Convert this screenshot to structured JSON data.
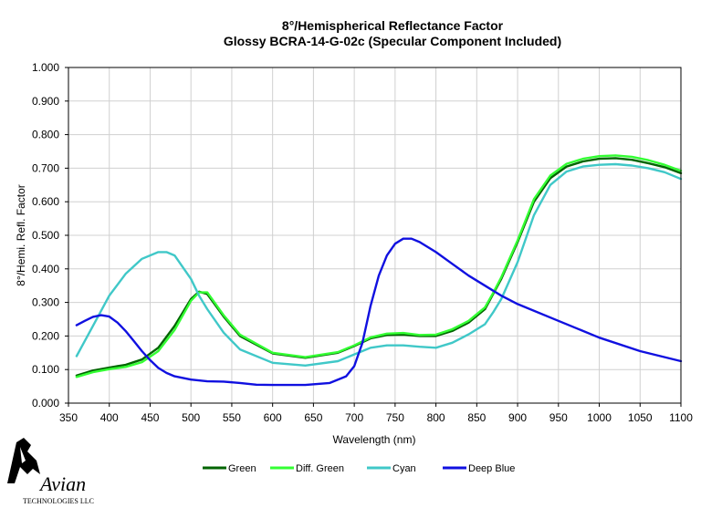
{
  "chart_data": {
    "type": "line",
    "title": "8°/Hemispherical Reflectance Factor",
    "subtitle": "Glossy BCRA-14-G-02c (Specular Component Included)",
    "xlabel": "Wavelength (nm)",
    "ylabel": "8°/Hemi. Refl. Factor",
    "xlim": [
      350,
      1100
    ],
    "ylim": [
      0,
      1
    ],
    "x_ticks": [
      "350",
      "400",
      "450",
      "500",
      "550",
      "600",
      "650",
      "700",
      "750",
      "800",
      "850",
      "900",
      "950",
      "1000",
      "1050",
      "1100"
    ],
    "y_ticks": [
      "0.000",
      "0.100",
      "0.200",
      "0.300",
      "0.400",
      "0.500",
      "0.600",
      "0.700",
      "0.800",
      "0.900",
      "1.000"
    ],
    "legend_position": "bottom",
    "series": [
      {
        "name": "Green",
        "color": "#006400",
        "x": [
          360,
          380,
          400,
          420,
          440,
          460,
          480,
          500,
          510,
          520,
          540,
          560,
          600,
          640,
          680,
          700,
          720,
          740,
          760,
          780,
          800,
          820,
          840,
          860,
          870,
          880,
          900,
          920,
          940,
          960,
          980,
          1000,
          1020,
          1040,
          1060,
          1080,
          1100
        ],
        "y": [
          0.082,
          0.097,
          0.106,
          0.114,
          0.13,
          0.165,
          0.23,
          0.31,
          0.332,
          0.325,
          0.258,
          0.2,
          0.148,
          0.135,
          0.15,
          0.17,
          0.193,
          0.203,
          0.204,
          0.2,
          0.2,
          0.215,
          0.24,
          0.28,
          0.325,
          0.37,
          0.48,
          0.6,
          0.67,
          0.705,
          0.72,
          0.728,
          0.73,
          0.725,
          0.715,
          0.703,
          0.685
        ]
      },
      {
        "name": "Diff. Green",
        "color": "#33ff33",
        "x": [
          360,
          380,
          400,
          420,
          440,
          460,
          480,
          500,
          510,
          520,
          540,
          560,
          600,
          640,
          680,
          700,
          720,
          740,
          760,
          780,
          800,
          820,
          840,
          860,
          870,
          880,
          900,
          920,
          940,
          960,
          980,
          1000,
          1020,
          1040,
          1060,
          1080,
          1100
        ],
        "y": [
          0.078,
          0.092,
          0.101,
          0.108,
          0.122,
          0.155,
          0.218,
          0.305,
          0.33,
          0.33,
          0.262,
          0.204,
          0.15,
          0.137,
          0.152,
          0.172,
          0.196,
          0.207,
          0.209,
          0.203,
          0.204,
          0.22,
          0.245,
          0.285,
          0.328,
          0.375,
          0.485,
          0.608,
          0.678,
          0.713,
          0.728,
          0.736,
          0.738,
          0.734,
          0.724,
          0.71,
          0.692
        ]
      },
      {
        "name": "Cyan",
        "color": "#40c8c8",
        "x": [
          360,
          380,
          400,
          420,
          440,
          460,
          470,
          480,
          500,
          510,
          520,
          540,
          560,
          600,
          640,
          680,
          700,
          720,
          740,
          760,
          780,
          800,
          820,
          840,
          860,
          870,
          880,
          900,
          920,
          940,
          960,
          980,
          1000,
          1020,
          1040,
          1060,
          1080,
          1100
        ],
        "y": [
          0.14,
          0.23,
          0.32,
          0.385,
          0.43,
          0.45,
          0.45,
          0.44,
          0.37,
          0.32,
          0.28,
          0.21,
          0.16,
          0.12,
          0.112,
          0.125,
          0.145,
          0.165,
          0.172,
          0.172,
          0.168,
          0.165,
          0.18,
          0.205,
          0.235,
          0.27,
          0.31,
          0.42,
          0.56,
          0.65,
          0.69,
          0.705,
          0.71,
          0.712,
          0.708,
          0.7,
          0.688,
          0.668
        ]
      },
      {
        "name": "Deep Blue",
        "color": "#1010e0",
        "x": [
          360,
          370,
          380,
          390,
          400,
          410,
          420,
          430,
          440,
          450,
          460,
          470,
          480,
          500,
          520,
          540,
          560,
          580,
          600,
          640,
          670,
          690,
          700,
          710,
          720,
          730,
          740,
          750,
          760,
          770,
          780,
          800,
          820,
          840,
          860,
          880,
          900,
          950,
          1000,
          1050,
          1100
        ],
        "y": [
          0.232,
          0.245,
          0.257,
          0.262,
          0.258,
          0.24,
          0.215,
          0.185,
          0.155,
          0.128,
          0.105,
          0.09,
          0.08,
          0.07,
          0.065,
          0.064,
          0.06,
          0.055,
          0.054,
          0.054,
          0.06,
          0.08,
          0.11,
          0.18,
          0.29,
          0.38,
          0.44,
          0.475,
          0.49,
          0.49,
          0.48,
          0.45,
          0.415,
          0.38,
          0.35,
          0.32,
          0.295,
          0.245,
          0.195,
          0.155,
          0.125
        ]
      }
    ]
  },
  "logo": {
    "name": "Avian",
    "tagline": "TECHNOLOGIES LLC"
  }
}
